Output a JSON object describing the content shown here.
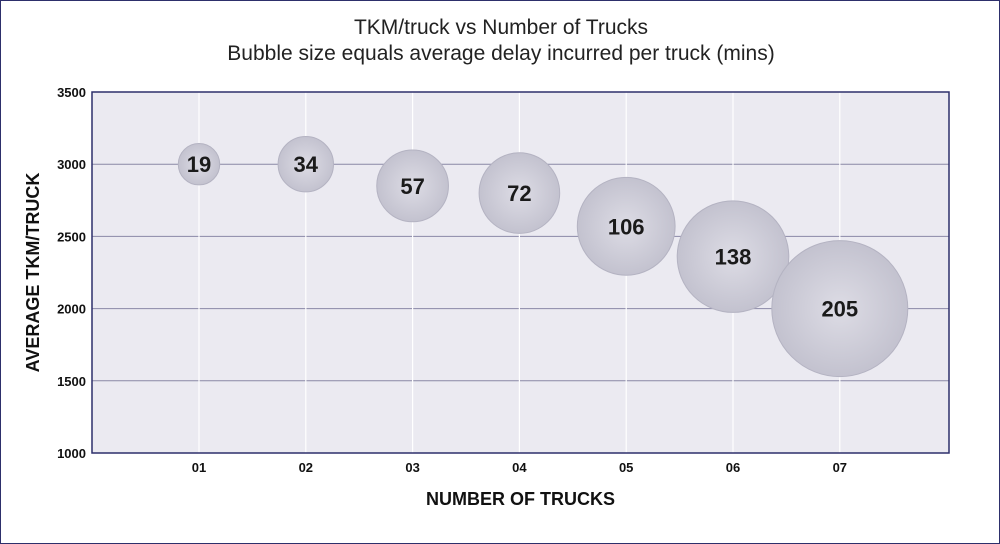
{
  "chart_data": {
    "type": "bubble",
    "title": "TKM/truck vs Number of Trucks",
    "subtitle": "Bubble size equals average delay incurred per truck (mins)",
    "xlabel": "NUMBER OF TRUCKS",
    "ylabel": "AVERAGE TKM/TRUCK",
    "categories": [
      "01",
      "02",
      "03",
      "04",
      "05",
      "06",
      "07"
    ],
    "ylim": [
      1000,
      3500
    ],
    "yticks": [
      1000,
      1500,
      2000,
      2500,
      3000,
      3500
    ],
    "grid": true,
    "points": [
      {
        "x": "01",
        "y": 3000,
        "size": 19
      },
      {
        "x": "02",
        "y": 3000,
        "size": 34
      },
      {
        "x": "03",
        "y": 2850,
        "size": 57
      },
      {
        "x": "04",
        "y": 2800,
        "size": 72
      },
      {
        "x": "05",
        "y": 2570,
        "size": 106
      },
      {
        "x": "06",
        "y": 2360,
        "size": 138
      },
      {
        "x": "07",
        "y": 2000,
        "size": 205
      }
    ],
    "colors": {
      "plot_bg": "#ebeaf1",
      "border": "#2d2f6b",
      "gridline": "#8a88a6",
      "bubble_fill": "#c7c6d3",
      "bubble_edge": "#b4b3c2"
    }
  }
}
